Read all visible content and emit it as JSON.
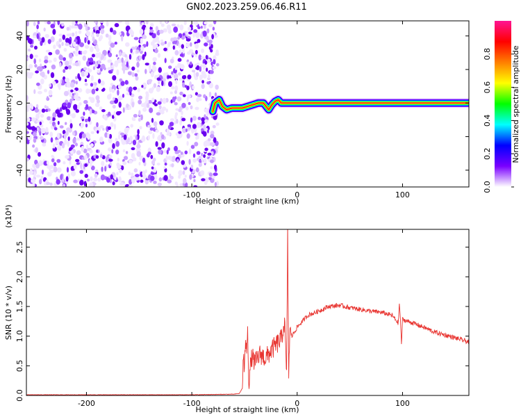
{
  "title": "GN02.2023.259.06.46.R11",
  "chart_data": [
    {
      "type": "heatmap",
      "xlabel": "Height of straight line (km)",
      "ylabel": "Frequency (Hz)",
      "xlim": [
        -257,
        163
      ],
      "ylim": [
        -50,
        49
      ],
      "x_ticks": [
        -200,
        -100,
        0,
        100
      ],
      "x_tick_labels": [
        "-200",
        "-100",
        "0",
        "100"
      ],
      "y_ticks": [
        -40,
        -20,
        0,
        20,
        40
      ],
      "y_tick_labels": [
        "-40",
        "-20",
        "0",
        "20",
        "40"
      ],
      "noise_region_x": [
        -257,
        -78
      ],
      "signal_trace": [
        {
          "x": -80,
          "y": -5
        },
        {
          "x": -78,
          "y": 0
        },
        {
          "x": -74,
          "y": 2
        },
        {
          "x": -71,
          "y": -2
        },
        {
          "x": -67,
          "y": -4
        },
        {
          "x": -62,
          "y": -3
        },
        {
          "x": -57,
          "y": -3
        },
        {
          "x": -52,
          "y": -3
        },
        {
          "x": -47,
          "y": -2
        },
        {
          "x": -42,
          "y": -1
        },
        {
          "x": -37,
          "y": 0
        },
        {
          "x": -32,
          "y": 0
        },
        {
          "x": -27,
          "y": -4
        },
        {
          "x": -24,
          "y": -1
        },
        {
          "x": -21,
          "y": 1
        },
        {
          "x": -18,
          "y": 2
        },
        {
          "x": -15,
          "y": 0
        },
        {
          "x": -10,
          "y": 0
        },
        {
          "x": 0,
          "y": 0
        },
        {
          "x": 50,
          "y": 0
        },
        {
          "x": 100,
          "y": 0
        },
        {
          "x": 163,
          "y": 0
        }
      ],
      "colorbar": {
        "label": "Normalized spectral amplitude",
        "ticks": [
          0.0,
          0.2,
          0.4,
          0.6,
          0.8
        ],
        "tick_labels": [
          "0.0",
          "0.2",
          "0.4",
          "0.6",
          "0.8"
        ],
        "range": [
          0,
          1
        ],
        "colormap": [
          "#ffffff",
          "#7a00ff",
          "#0000ff",
          "#00ffff",
          "#00ff00",
          "#ffff00",
          "#ff7f00",
          "#ff0000",
          "#ff1493"
        ]
      }
    },
    {
      "type": "line",
      "xlabel": "Height of straight line (km)",
      "ylabel": "SNR (10 * v/v)",
      "multiplier": "(x10⁴)",
      "xlim": [
        -257,
        163
      ],
      "ylim": [
        0,
        2.8
      ],
      "x_ticks": [
        -200,
        -100,
        0,
        100
      ],
      "x_tick_labels": [
        "-200",
        "-100",
        "0",
        "100"
      ],
      "y_ticks": [
        0.0,
        0.5,
        1.0,
        1.5,
        2.0,
        2.5
      ],
      "y_tick_labels": [
        "0.0",
        "0.5",
        "1.0",
        "1.5",
        "2.0",
        "2.5"
      ],
      "color": "#e8332f",
      "series": [
        {
          "x": [
            -257,
            -200,
            -150,
            -100,
            -60,
            -55,
            -52,
            -51,
            -50,
            -49,
            -48,
            -47,
            -46,
            -45,
            -43,
            -40,
            -35,
            -30,
            -25,
            -20,
            -15,
            -12,
            -10,
            -9,
            -8,
            -7,
            -6,
            -5,
            0,
            10,
            20,
            30,
            40,
            50,
            60,
            70,
            80,
            90,
            96,
            97,
            98,
            99,
            100,
            110,
            120,
            130,
            140,
            150,
            163
          ],
          "y": [
            0.01,
            0.01,
            0.01,
            0.01,
            0.02,
            0.03,
            0.12,
            0.7,
            0.35,
            1.05,
            0.6,
            1.25,
            0.2,
            0.4,
            0.65,
            0.55,
            0.7,
            0.62,
            0.75,
            0.85,
            0.95,
            1.25,
            0.3,
            2.8,
            0.4,
            1.05,
            1.05,
            1.0,
            1.15,
            1.35,
            1.42,
            1.5,
            1.52,
            1.48,
            1.45,
            1.42,
            1.4,
            1.35,
            1.22,
            1.55,
            1.3,
            0.85,
            1.28,
            1.22,
            1.15,
            1.07,
            1.02,
            0.97,
            0.9
          ]
        }
      ]
    }
  ]
}
